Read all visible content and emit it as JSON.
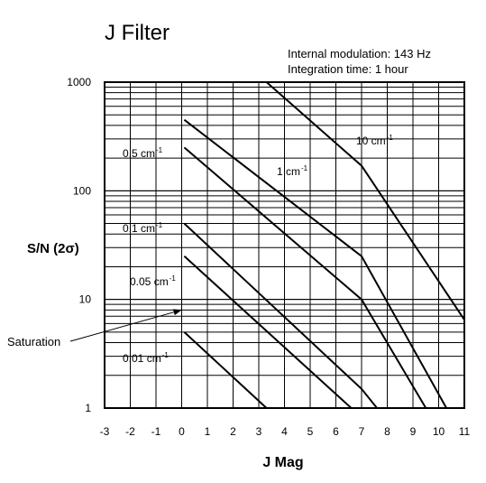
{
  "chart_data": {
    "type": "line",
    "title": "J Filter",
    "notes": [
      "Internal modulation: 143 Hz",
      "Integration time: 1 hour"
    ],
    "xlabel": "J Mag",
    "ylabel": "S/N (2σ)",
    "x_ticks": [
      "-3",
      "-2",
      "-1",
      "0",
      "1",
      "2",
      "3",
      "4",
      "5",
      "6",
      "7",
      "8",
      "9",
      "10",
      "11"
    ],
    "y_ticks": [
      "1",
      "10",
      "100",
      "1000"
    ],
    "xlim": [
      -3,
      11
    ],
    "ylim": [
      1,
      1000
    ],
    "y_scale": "log",
    "grid": true,
    "series": [
      {
        "name": "10 cm⁻¹",
        "points": [
          [
            3.3,
            1000
          ],
          [
            7.0,
            170
          ],
          [
            11.0,
            6.5
          ]
        ]
      },
      {
        "name": "1 cm⁻¹",
        "points": [
          [
            0.1,
            450
          ],
          [
            7.0,
            25
          ],
          [
            10.3,
            1
          ]
        ]
      },
      {
        "name": "0.5 cm⁻¹",
        "points": [
          [
            0.1,
            250
          ],
          [
            7.0,
            10
          ],
          [
            9.5,
            1
          ]
        ]
      },
      {
        "name": "0.1 cm⁻¹",
        "points": [
          [
            0.1,
            50
          ],
          [
            7.0,
            1.5
          ],
          [
            7.6,
            1
          ]
        ]
      },
      {
        "name": "0.05 cm⁻¹",
        "points": [
          [
            0.1,
            25
          ],
          [
            6.6,
            1
          ]
        ]
      },
      {
        "name": "0.01 cm⁻¹",
        "points": [
          [
            0.1,
            5
          ],
          [
            3.3,
            1
          ]
        ]
      }
    ],
    "series_labels": [
      {
        "text": "10 cm",
        "sup": "-1"
      },
      {
        "text": "1 cm",
        "sup": "-1"
      },
      {
        "text": "0.5 cm",
        "sup": "-1"
      },
      {
        "text": "0.1 cm",
        "sup": "-1"
      },
      {
        "text": "0.05 cm",
        "sup": "-1"
      },
      {
        "text": "0.01 cm",
        "sup": "-1"
      }
    ],
    "annotation": {
      "text": "Saturation",
      "points_to": [
        0.0,
        8.0
      ]
    }
  }
}
